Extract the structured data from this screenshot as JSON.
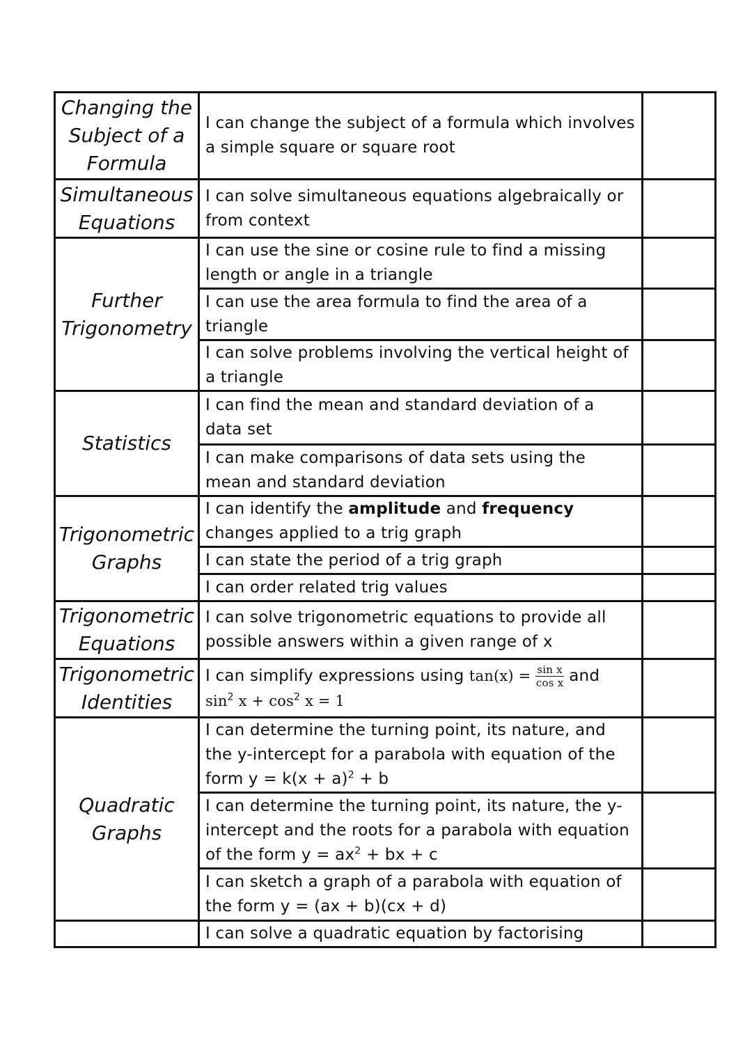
{
  "groups": [
    {
      "topic": "Changing the Subject of a Formula",
      "items": [
        [
          {
            "t": "I can change the subject of a formula which involves a simple square or square root"
          }
        ]
      ]
    },
    {
      "topic": "Simultaneous Equations",
      "items": [
        [
          {
            "t": "I can solve simultaneous equations algebraically or from context"
          }
        ]
      ]
    },
    {
      "topic": "Further Trigonometry",
      "items": [
        [
          {
            "t": "I can use the sine or cosine rule to find a missing length or angle in a triangle"
          }
        ],
        [
          {
            "t": "I can use the area formula to find the area of a triangle"
          }
        ],
        [
          {
            "t": "I can solve problems involving the vertical height of a triangle"
          }
        ]
      ]
    },
    {
      "topic": "Statistics",
      "items": [
        [
          {
            "t": "I can find the mean and standard deviation of a data set"
          }
        ],
        [
          {
            "t": "I can make comparisons of data sets using the mean and standard deviation"
          }
        ]
      ]
    },
    {
      "topic": "Trigonometric Graphs",
      "items": [
        [
          {
            "t": "I can identify the "
          },
          {
            "t": "amplitude",
            "b": true
          },
          {
            "t": " and "
          },
          {
            "t": "frequency",
            "b": true
          },
          {
            "t": " changes applied to a trig graph"
          }
        ],
        [
          {
            "t": "I can state the period of a trig graph"
          }
        ],
        [
          {
            "t": "I can order related trig values"
          }
        ]
      ]
    },
    {
      "topic": "Trigonometric Equations",
      "items": [
        [
          {
            "t": "I can solve trigonometric equations to provide all possible answers within a given range of x"
          }
        ]
      ]
    },
    {
      "topic": "Trigonometric Identities",
      "items": [
        [
          {
            "t": "I can simplify expressions using "
          },
          {
            "m": "tan(x) = "
          },
          {
            "num": "sin x",
            "den": "cos x"
          },
          {
            "t": " and "
          },
          {
            "br": true
          },
          {
            "m": "sin"
          },
          {
            "sup": "2"
          },
          {
            "m": " x + cos"
          },
          {
            "sup": "2"
          },
          {
            "m": " x = 1"
          }
        ]
      ]
    },
    {
      "topic": "Quadratic Graphs",
      "items": [
        [
          {
            "t": "I can determine the turning point, its nature, and the y-intercept for a parabola with equation of the form y = k(x + a)"
          },
          {
            "sup": "2"
          },
          {
            "t": " + b"
          }
        ],
        [
          {
            "t": "I can determine the turning point, its nature, the y-intercept and the roots for a parabola with equation of the form y = ax"
          },
          {
            "sup": "2"
          },
          {
            "t": " + bx + c"
          }
        ],
        [
          {
            "t": "I can sketch a graph of a parabola with equation of the form y = (ax + b)(cx + d)"
          }
        ]
      ]
    },
    {
      "topic": "",
      "items": [
        [
          {
            "t": "I can solve a quadratic equation by factorising"
          }
        ]
      ]
    }
  ]
}
